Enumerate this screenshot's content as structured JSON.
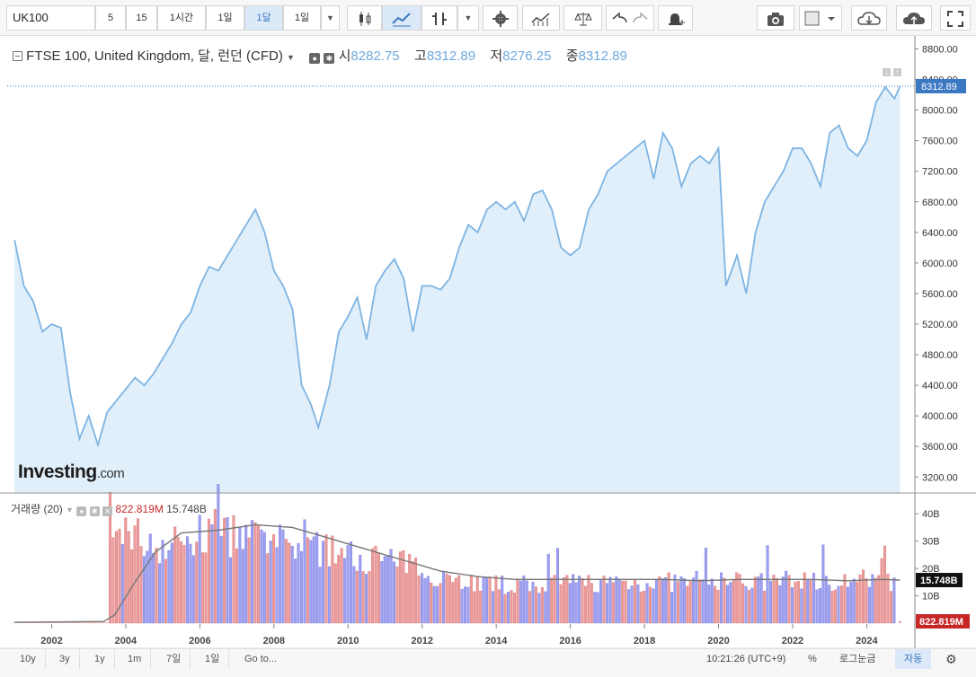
{
  "toolbar": {
    "symbol": "UK100",
    "intervals": [
      "5",
      "15",
      "1시간",
      "1일",
      "1달",
      "1일"
    ],
    "active_interval": "1달"
  },
  "legend": {
    "title": "FTSE 100, United Kingdom, 달, 런던 (CFD)",
    "open_label": "시",
    "open": "8282.75",
    "high_label": "고",
    "high": "8312.89",
    "low_label": "저",
    "low": "8276.25",
    "close_label": "종",
    "close": "8312.89"
  },
  "volume_legend": {
    "label": "거래량 (20)",
    "volume": "822.819M",
    "ma": "15.748B"
  },
  "logo": {
    "brand": "Investing",
    "suffix": ".com"
  },
  "last_price_tag": "8312.89",
  "volume_tag_ma": "15.748B",
  "volume_tag_vol": "822.819M",
  "bottombar": {
    "ranges": [
      "10y",
      "3y",
      "1y",
      "1m",
      "7일",
      "1일",
      "Go to..."
    ],
    "time": "10:21:26 (UTC+9)",
    "percent": "%",
    "log": "로그눈금",
    "auto": "자동"
  },
  "colors": {
    "line": "#7db4e3",
    "area": "#e0effa",
    "vol_up": "#9d9ff0",
    "vol_down": "#ec9a9a",
    "vol_ma": "#777777",
    "price_tag": "#3b78c2",
    "vol_tag": "#c62828"
  },
  "chart_data": {
    "type": "area",
    "xlabel": "",
    "ylabel": "",
    "x_ticks": [
      "2002",
      "2004",
      "2006",
      "2008",
      "2010",
      "2012",
      "2014",
      "2016",
      "2018",
      "2020",
      "2022",
      "2024"
    ],
    "y_ticks": [
      3200,
      3600,
      4000,
      4400,
      4800,
      5200,
      5600,
      6000,
      6400,
      6800,
      7200,
      7600,
      8000,
      8400,
      8800
    ],
    "ylim": [
      2980,
      8970
    ],
    "xlim": [
      2000.8,
      2025.3
    ],
    "grid": false,
    "price_series": {
      "name": "FTSE 100",
      "points": [
        [
          2001.0,
          6300
        ],
        [
          2001.25,
          5700
        ],
        [
          2001.5,
          5500
        ],
        [
          2001.75,
          5100
        ],
        [
          2002.0,
          5200
        ],
        [
          2002.25,
          5150
        ],
        [
          2002.5,
          4300
        ],
        [
          2002.75,
          3700
        ],
        [
          2003.0,
          4000
        ],
        [
          2003.25,
          3620
        ],
        [
          2003.5,
          4050
        ],
        [
          2003.75,
          4200
        ],
        [
          2004.0,
          4350
        ],
        [
          2004.25,
          4500
        ],
        [
          2004.5,
          4400
        ],
        [
          2004.75,
          4550
        ],
        [
          2005.0,
          4750
        ],
        [
          2005.25,
          4950
        ],
        [
          2005.5,
          5200
        ],
        [
          2005.75,
          5350
        ],
        [
          2006.0,
          5700
        ],
        [
          2006.25,
          5950
        ],
        [
          2006.5,
          5900
        ],
        [
          2006.75,
          6100
        ],
        [
          2007.0,
          6300
        ],
        [
          2007.25,
          6500
        ],
        [
          2007.5,
          6700
        ],
        [
          2007.75,
          6400
        ],
        [
          2008.0,
          5900
        ],
        [
          2008.25,
          5700
        ],
        [
          2008.5,
          5400
        ],
        [
          2008.75,
          4400
        ],
        [
          2009.0,
          4150
        ],
        [
          2009.2,
          3850
        ],
        [
          2009.5,
          4400
        ],
        [
          2009.75,
          5100
        ],
        [
          2010.0,
          5300
        ],
        [
          2010.25,
          5550
        ],
        [
          2010.5,
          5000
        ],
        [
          2010.75,
          5700
        ],
        [
          2011.0,
          5900
        ],
        [
          2011.25,
          6050
        ],
        [
          2011.5,
          5800
        ],
        [
          2011.75,
          5100
        ],
        [
          2012.0,
          5700
        ],
        [
          2012.25,
          5700
        ],
        [
          2012.5,
          5650
        ],
        [
          2012.75,
          5800
        ],
        [
          2013.0,
          6200
        ],
        [
          2013.25,
          6500
        ],
        [
          2013.5,
          6400
        ],
        [
          2013.75,
          6700
        ],
        [
          2014.0,
          6800
        ],
        [
          2014.25,
          6700
        ],
        [
          2014.5,
          6800
        ],
        [
          2014.75,
          6550
        ],
        [
          2015.0,
          6900
        ],
        [
          2015.25,
          6950
        ],
        [
          2015.5,
          6700
        ],
        [
          2015.75,
          6200
        ],
        [
          2016.0,
          6100
        ],
        [
          2016.25,
          6200
        ],
        [
          2016.5,
          6700
        ],
        [
          2016.75,
          6900
        ],
        [
          2017.0,
          7200
        ],
        [
          2017.25,
          7300
        ],
        [
          2017.5,
          7400
        ],
        [
          2017.75,
          7500
        ],
        [
          2018.0,
          7600
        ],
        [
          2018.25,
          7100
        ],
        [
          2018.5,
          7700
        ],
        [
          2018.75,
          7500
        ],
        [
          2019.0,
          7000
        ],
        [
          2019.25,
          7300
        ],
        [
          2019.5,
          7400
        ],
        [
          2019.75,
          7300
        ],
        [
          2020.0,
          7500
        ],
        [
          2020.2,
          5700
        ],
        [
          2020.5,
          6100
        ],
        [
          2020.75,
          5600
        ],
        [
          2021.0,
          6400
        ],
        [
          2021.25,
          6800
        ],
        [
          2021.5,
          7000
        ],
        [
          2021.75,
          7200
        ],
        [
          2022.0,
          7500
        ],
        [
          2022.25,
          7500
        ],
        [
          2022.5,
          7300
        ],
        [
          2022.75,
          7000
        ],
        [
          2023.0,
          7700
        ],
        [
          2023.25,
          7800
        ],
        [
          2023.5,
          7500
        ],
        [
          2023.75,
          7400
        ],
        [
          2024.0,
          7600
        ],
        [
          2024.25,
          8100
        ],
        [
          2024.5,
          8300
        ],
        [
          2024.75,
          8150
        ],
        [
          2024.9,
          8312.89
        ]
      ]
    },
    "volume": {
      "axis_ticks": [
        "10B",
        "20B",
        "30B",
        "40B"
      ],
      "ylim_billions": [
        0,
        44
      ],
      "first_trade_year": 2003.58,
      "bar_step_years": 0.0833,
      "envelope": [
        [
          2003.58,
          30
        ],
        [
          2004.0,
          40
        ],
        [
          2004.5,
          34
        ],
        [
          2005.0,
          32
        ],
        [
          2006.0,
          36
        ],
        [
          2007.0,
          37
        ],
        [
          2008.0,
          33
        ],
        [
          2009.0,
          32
        ],
        [
          2010.0,
          28
        ],
        [
          2011.0,
          27
        ],
        [
          2012.0,
          22
        ],
        [
          2013.0,
          18
        ],
        [
          2014.0,
          16
        ],
        [
          2015.0,
          16
        ],
        [
          2016.0,
          17
        ],
        [
          2017.0,
          17
        ],
        [
          2018.0,
          17
        ],
        [
          2019.0,
          17
        ],
        [
          2020.0,
          18
        ],
        [
          2021.0,
          17
        ],
        [
          2022.0,
          18
        ],
        [
          2023.0,
          18
        ],
        [
          2024.0,
          18
        ],
        [
          2024.9,
          17
        ]
      ],
      "ma_points": [
        [
          2001.0,
          0.3
        ],
        [
          2003.4,
          0.6
        ],
        [
          2003.7,
          3
        ],
        [
          2004.2,
          14
        ],
        [
          2004.8,
          26
        ],
        [
          2005.5,
          33
        ],
        [
          2006.5,
          34
        ],
        [
          2007.5,
          36
        ],
        [
          2008.5,
          35
        ],
        [
          2009.5,
          31
        ],
        [
          2010.5,
          27
        ],
        [
          2011.5,
          23
        ],
        [
          2012.5,
          19
        ],
        [
          2013.5,
          17
        ],
        [
          2014.5,
          16
        ],
        [
          2015.5,
          16
        ],
        [
          2016.5,
          16
        ],
        [
          2017.5,
          16
        ],
        [
          2018.5,
          16
        ],
        [
          2019.5,
          15.5
        ],
        [
          2020.5,
          16
        ],
        [
          2021.5,
          16
        ],
        [
          2022.5,
          16
        ],
        [
          2023.5,
          15.5
        ],
        [
          2024.4,
          16
        ],
        [
          2024.9,
          15.748
        ]
      ],
      "last_volume": 0.8228,
      "last_ma": 15.748
    }
  }
}
